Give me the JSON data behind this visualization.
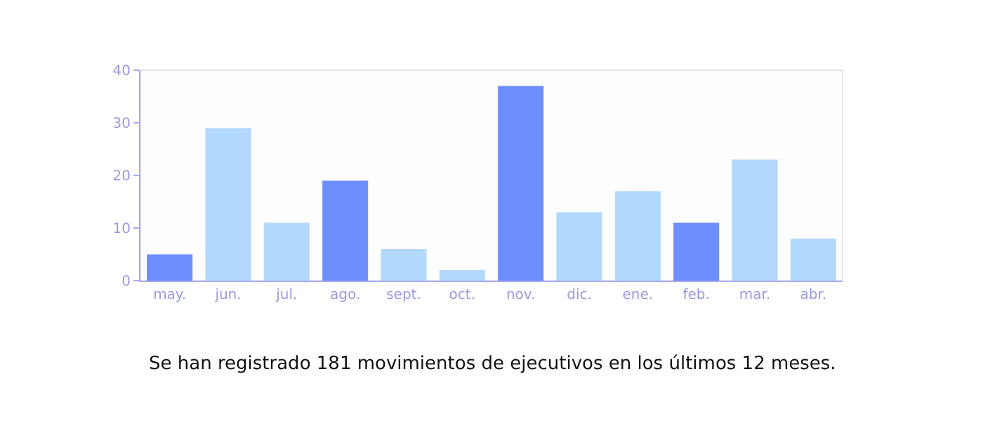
{
  "chart_data": {
    "type": "bar",
    "categories": [
      "may.",
      "jun.",
      "jul.",
      "ago.",
      "sept.",
      "oct.",
      "nov.",
      "dic.",
      "ene.",
      "feb.",
      "mar.",
      "abr."
    ],
    "values": [
      5,
      29,
      11,
      19,
      6,
      2,
      37,
      13,
      17,
      11,
      23,
      8
    ],
    "colors": [
      "#6e8efd",
      "#b3d8fd",
      "#b3d8fd",
      "#6e8efd",
      "#b3d8fd",
      "#b3d8fd",
      "#6e8efd",
      "#b3d8fd",
      "#b3d8fd",
      "#6e8efd",
      "#b3d8fd",
      "#b3d8fd"
    ],
    "ylim": [
      0,
      40
    ],
    "yticks": [
      0,
      10,
      20,
      30,
      40
    ],
    "annotations": [
      "Se han registrado 181 movimientos de ejecutivos en los últimos 12 meses."
    ]
  }
}
